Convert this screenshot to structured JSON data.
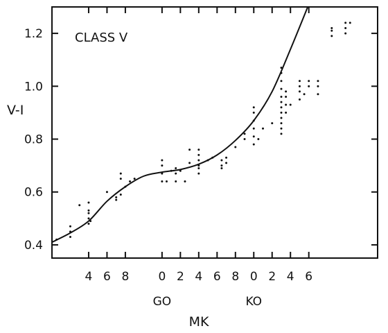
{
  "chart_data": {
    "type": "scatter",
    "title": "CLASS V",
    "ylabel": "V-I",
    "xlabel": "MK",
    "ylim": [
      0.35,
      1.3
    ],
    "xlim": [
      -0.2,
      3.35
    ],
    "x_ticks": [
      {
        "x": 0.2,
        "label": "4"
      },
      {
        "x": 0.4,
        "label": "6"
      },
      {
        "x": 0.6,
        "label": "8"
      },
      {
        "x": 1.0,
        "label": "0"
      },
      {
        "x": 1.2,
        "label": "2"
      },
      {
        "x": 1.4,
        "label": "4"
      },
      {
        "x": 1.6,
        "label": "6"
      },
      {
        "x": 1.8,
        "label": "8"
      },
      {
        "x": 2.0,
        "label": "0"
      },
      {
        "x": 2.2,
        "label": "2"
      },
      {
        "x": 2.4,
        "label": "4"
      },
      {
        "x": 2.6,
        "label": "6"
      }
    ],
    "class_labels": [
      {
        "x": 1.0,
        "label": "GO"
      },
      {
        "x": 2.0,
        "label": "KO"
      }
    ],
    "y_ticks": [
      {
        "y": 0.4,
        "label": "0.4"
      },
      {
        "y": 0.6,
        "label": "0.6"
      },
      {
        "y": 0.8,
        "label": "0.8"
      },
      {
        "y": 1.0,
        "label": "1.0"
      },
      {
        "y": 1.2,
        "label": "1.2"
      }
    ],
    "curve": [
      {
        "x": -0.2,
        "y": 0.41
      },
      {
        "x": 0.0,
        "y": 0.445
      },
      {
        "x": 0.2,
        "y": 0.49
      },
      {
        "x": 0.4,
        "y": 0.565
      },
      {
        "x": 0.6,
        "y": 0.62
      },
      {
        "x": 0.8,
        "y": 0.66
      },
      {
        "x": 1.0,
        "y": 0.675
      },
      {
        "x": 1.2,
        "y": 0.685
      },
      {
        "x": 1.4,
        "y": 0.705
      },
      {
        "x": 1.6,
        "y": 0.74
      },
      {
        "x": 1.8,
        "y": 0.795
      },
      {
        "x": 2.0,
        "y": 0.87
      },
      {
        "x": 2.2,
        "y": 0.98
      },
      {
        "x": 2.4,
        "y": 1.14
      },
      {
        "x": 2.6,
        "y": 1.31
      }
    ],
    "points": [
      {
        "x": -0.15,
        "y": 0.42
      },
      {
        "x": 0.0,
        "y": 0.43
      },
      {
        "x": 0.0,
        "y": 0.45
      },
      {
        "x": 0.0,
        "y": 0.47
      },
      {
        "x": 0.1,
        "y": 0.55
      },
      {
        "x": 0.2,
        "y": 0.48
      },
      {
        "x": 0.2,
        "y": 0.5
      },
      {
        "x": 0.2,
        "y": 0.52
      },
      {
        "x": 0.2,
        "y": 0.53
      },
      {
        "x": 0.2,
        "y": 0.56
      },
      {
        "x": 0.22,
        "y": 0.49
      },
      {
        "x": 0.4,
        "y": 0.6
      },
      {
        "x": 0.5,
        "y": 0.57
      },
      {
        "x": 0.5,
        "y": 0.58
      },
      {
        "x": 0.55,
        "y": 0.59
      },
      {
        "x": 0.55,
        "y": 0.65
      },
      {
        "x": 0.55,
        "y": 0.67
      },
      {
        "x": 0.6,
        "y": 0.62
      },
      {
        "x": 0.65,
        "y": 0.64
      },
      {
        "x": 0.7,
        "y": 0.65
      },
      {
        "x": 1.0,
        "y": 0.64
      },
      {
        "x": 1.0,
        "y": 0.67
      },
      {
        "x": 1.0,
        "y": 0.7
      },
      {
        "x": 1.0,
        "y": 0.72
      },
      {
        "x": 1.05,
        "y": 0.64
      },
      {
        "x": 1.1,
        "y": 0.68
      },
      {
        "x": 1.15,
        "y": 0.64
      },
      {
        "x": 1.15,
        "y": 0.67
      },
      {
        "x": 1.15,
        "y": 0.69
      },
      {
        "x": 1.2,
        "y": 0.68
      },
      {
        "x": 1.25,
        "y": 0.64
      },
      {
        "x": 1.3,
        "y": 0.71
      },
      {
        "x": 1.3,
        "y": 0.76
      },
      {
        "x": 1.4,
        "y": 0.67
      },
      {
        "x": 1.4,
        "y": 0.69
      },
      {
        "x": 1.4,
        "y": 0.7
      },
      {
        "x": 1.4,
        "y": 0.72
      },
      {
        "x": 1.4,
        "y": 0.74
      },
      {
        "x": 1.4,
        "y": 0.76
      },
      {
        "x": 1.5,
        "y": 0.72
      },
      {
        "x": 1.55,
        "y": 0.73
      },
      {
        "x": 1.65,
        "y": 0.69
      },
      {
        "x": 1.65,
        "y": 0.7
      },
      {
        "x": 1.65,
        "y": 0.72
      },
      {
        "x": 1.7,
        "y": 0.71
      },
      {
        "x": 1.7,
        "y": 0.73
      },
      {
        "x": 1.8,
        "y": 0.77
      },
      {
        "x": 1.9,
        "y": 0.8
      },
      {
        "x": 1.9,
        "y": 0.82
      },
      {
        "x": 2.0,
        "y": 0.78
      },
      {
        "x": 2.0,
        "y": 0.81
      },
      {
        "x": 2.0,
        "y": 0.84
      },
      {
        "x": 2.0,
        "y": 0.87
      },
      {
        "x": 2.0,
        "y": 0.9
      },
      {
        "x": 2.0,
        "y": 0.92
      },
      {
        "x": 2.05,
        "y": 0.8
      },
      {
        "x": 2.1,
        "y": 0.84
      },
      {
        "x": 2.2,
        "y": 0.86
      },
      {
        "x": 2.3,
        "y": 0.82
      },
      {
        "x": 2.3,
        "y": 0.84
      },
      {
        "x": 2.3,
        "y": 0.86
      },
      {
        "x": 2.3,
        "y": 0.88
      },
      {
        "x": 2.3,
        "y": 0.9
      },
      {
        "x": 2.3,
        "y": 0.92
      },
      {
        "x": 2.3,
        "y": 0.94
      },
      {
        "x": 2.3,
        "y": 0.96
      },
      {
        "x": 2.3,
        "y": 0.99
      },
      {
        "x": 2.3,
        "y": 1.02
      },
      {
        "x": 2.3,
        "y": 1.05
      },
      {
        "x": 2.3,
        "y": 1.07
      },
      {
        "x": 2.35,
        "y": 0.93
      },
      {
        "x": 2.35,
        "y": 0.96
      },
      {
        "x": 2.35,
        "y": 0.98
      },
      {
        "x": 2.35,
        "y": 0.9
      },
      {
        "x": 2.4,
        "y": 0.93
      },
      {
        "x": 2.5,
        "y": 0.95
      },
      {
        "x": 2.5,
        "y": 0.98
      },
      {
        "x": 2.5,
        "y": 1.0
      },
      {
        "x": 2.5,
        "y": 1.02
      },
      {
        "x": 2.55,
        "y": 0.97
      },
      {
        "x": 2.6,
        "y": 1.0
      },
      {
        "x": 2.6,
        "y": 1.02
      },
      {
        "x": 2.7,
        "y": 0.97
      },
      {
        "x": 2.7,
        "y": 1.0
      },
      {
        "x": 2.7,
        "y": 1.02
      },
      {
        "x": 2.85,
        "y": 1.19
      },
      {
        "x": 2.85,
        "y": 1.21
      },
      {
        "x": 2.85,
        "y": 1.22
      },
      {
        "x": 3.0,
        "y": 1.2
      },
      {
        "x": 3.0,
        "y": 1.22
      },
      {
        "x": 3.0,
        "y": 1.24
      },
      {
        "x": 3.05,
        "y": 1.24
      }
    ],
    "grid": false,
    "legend": false,
    "colors": {
      "ink": "#111111",
      "background": "#ffffff"
    }
  }
}
